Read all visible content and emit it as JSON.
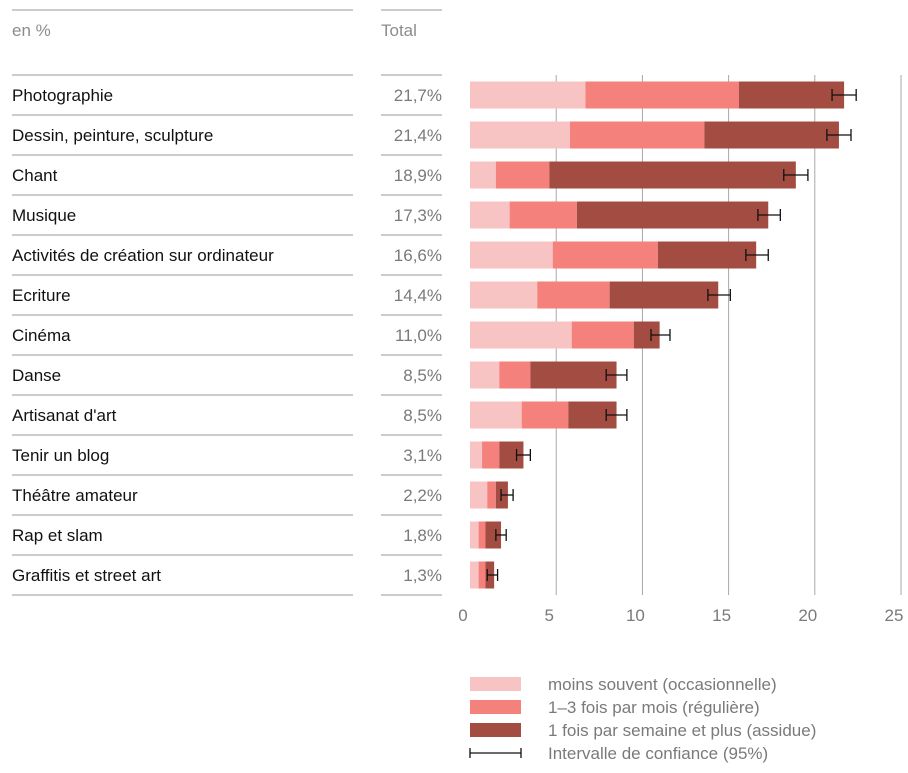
{
  "header": {
    "unit_label": "en %",
    "total_label": "Total"
  },
  "chart_data": {
    "type": "bar",
    "orientation": "horizontal",
    "stacked": true,
    "categories": [
      "Photographie",
      "Dessin, peinture, sculpture",
      "Chant",
      "Musique",
      "Activités de création sur ordinateur",
      "Ecriture",
      "Cinéma",
      "Danse",
      "Artisanat d'art",
      "Tenir un blog",
      "Théâtre amateur",
      "Rap et slam",
      "Graffitis et street art"
    ],
    "totals_labels": [
      "21,7%",
      "21,4%",
      "18,9%",
      "17,3%",
      "16,6%",
      "14,4%",
      "11,0%",
      "8,5%",
      "8,5%",
      "3,1%",
      "2,2%",
      "1,8%",
      "1,3%"
    ],
    "series": [
      {
        "name": "moins souvent (occasionnelle)",
        "color": "#f7c3c3",
        "values": [
          6.7,
          5.8,
          1.5,
          2.3,
          4.8,
          3.9,
          5.9,
          1.7,
          3.0,
          0.7,
          1.0,
          0.5,
          0.5
        ]
      },
      {
        "name": "1–3 fois par mois (régulière)",
        "color": "#f4817b",
        "values": [
          8.9,
          7.8,
          3.1,
          3.9,
          6.1,
          4.2,
          3.6,
          1.8,
          2.7,
          1.0,
          0.5,
          0.4,
          0.4
        ]
      },
      {
        "name": "1 fois par semaine et plus (assidue)",
        "color": "#a34c42",
        "values": [
          6.1,
          7.8,
          14.3,
          11.1,
          5.7,
          6.3,
          1.5,
          5.0,
          2.8,
          1.4,
          0.7,
          0.9,
          0.5
        ]
      }
    ],
    "totals": [
      21.7,
      21.4,
      18.9,
      17.3,
      16.6,
      14.4,
      11.0,
      8.5,
      8.5,
      3.1,
      2.2,
      1.8,
      1.3
    ],
    "confidence_intervals": [
      [
        21.0,
        22.4
      ],
      [
        20.7,
        22.1
      ],
      [
        18.2,
        19.6
      ],
      [
        16.7,
        18.0
      ],
      [
        16.0,
        17.3
      ],
      [
        13.8,
        15.1
      ],
      [
        10.5,
        11.6
      ],
      [
        7.9,
        9.1
      ],
      [
        7.9,
        9.1
      ],
      [
        2.7,
        3.5
      ],
      [
        1.8,
        2.5
      ],
      [
        1.5,
        2.1
      ],
      [
        1.0,
        1.6
      ]
    ],
    "x_ticks": [
      0,
      5,
      10,
      15,
      20,
      25
    ],
    "xlim": [
      0,
      25
    ],
    "grid": true,
    "legend_position": "bottom-right"
  },
  "legend": {
    "items": [
      {
        "label": "moins souvent (occasionnelle)",
        "color": "#f7c3c3",
        "kind": "swatch"
      },
      {
        "label": "1–3 fois par mois (régulière)",
        "color": "#f4817b",
        "kind": "swatch"
      },
      {
        "label": "1 fois par semaine et plus (assidue)",
        "color": "#a34c42",
        "kind": "swatch"
      },
      {
        "label": "Intervalle de confiance (95%)",
        "color": "#111111",
        "kind": "errorbar"
      }
    ]
  }
}
